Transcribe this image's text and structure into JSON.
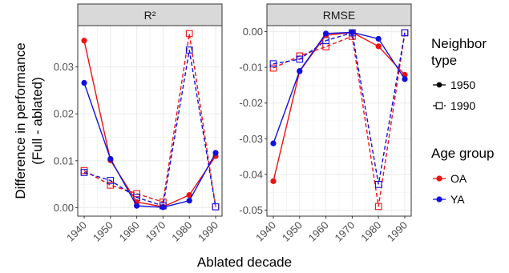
{
  "chart_data": {
    "type": "line",
    "xlabel": "Ablated decade",
    "ylabel_line1": "Difference in performance",
    "ylabel_line2": "(Full - ablated)",
    "x_categories": [
      "1940",
      "1950",
      "1960",
      "1970",
      "1980",
      "1990"
    ],
    "grid": true,
    "facet_background": "#d9d9d9",
    "legend_position": "right",
    "legend": {
      "neighbor_title_line1": "Neighbor",
      "neighbor_title_line2": "type",
      "neighbor_entries": [
        {
          "label": "1950",
          "marker": "filled-circle",
          "linestyle": "solid"
        },
        {
          "label": "1990",
          "marker": "open-square",
          "linestyle": "dashed"
        }
      ],
      "age_title": "Age group",
      "age_entries": [
        {
          "label": "OA",
          "color": "#ee1111"
        },
        {
          "label": "YA",
          "color": "#1111dd"
        }
      ]
    },
    "panels": [
      {
        "title": "R²",
        "yticks": [
          "0.00",
          "0.01",
          "0.02",
          "0.03"
        ],
        "ytick_values": [
          0.0,
          0.01,
          0.02,
          0.03
        ],
        "ylim": [
          -0.0018,
          0.0388
        ],
        "series": [
          {
            "age": "OA",
            "neighbor": "1950",
            "values": [
              0.0356,
              0.0101,
              0.0012,
              0.0002,
              0.0027,
              0.011
            ]
          },
          {
            "age": "YA",
            "neighbor": "1950",
            "values": [
              0.0266,
              0.0104,
              0.0004,
              0.0001,
              0.0015,
              0.0117
            ]
          },
          {
            "age": "OA",
            "neighbor": "1990",
            "values": [
              0.0079,
              0.0048,
              0.003,
              0.0012,
              0.0371,
              0.0002
            ]
          },
          {
            "age": "YA",
            "neighbor": "1990",
            "values": [
              0.0075,
              0.0058,
              0.0022,
              0.0004,
              0.0336,
              0.0002
            ]
          }
        ]
      },
      {
        "title": "RMSE",
        "yticks": [
          "0.00",
          "-0.01",
          "-0.02",
          "-0.03",
          "-0.04",
          "-0.05"
        ],
        "ytick_values": [
          0.0,
          -0.01,
          -0.02,
          -0.03,
          -0.04,
          -0.05
        ],
        "ylim": [
          -0.0517,
          0.0017
        ],
        "series": [
          {
            "age": "OA",
            "neighbor": "1950",
            "values": [
              -0.0419,
              -0.0111,
              -0.001,
              -0.0002,
              -0.0041,
              -0.0121
            ]
          },
          {
            "age": "YA",
            "neighbor": "1950",
            "values": [
              -0.0313,
              -0.011,
              -0.0005,
              -0.0002,
              -0.002,
              -0.0133
            ]
          },
          {
            "age": "OA",
            "neighbor": "1990",
            "values": [
              -0.0102,
              -0.0068,
              -0.0042,
              -0.0013,
              -0.049,
              -0.0003
            ]
          },
          {
            "age": "YA",
            "neighbor": "1990",
            "values": [
              -0.009,
              -0.0077,
              -0.0025,
              -0.0003,
              -0.0428,
              -0.0003
            ]
          }
        ]
      }
    ]
  }
}
